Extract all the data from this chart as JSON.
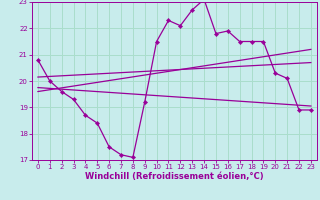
{
  "background_color": "#c8ecec",
  "grid_color": "#aaddcc",
  "line_color": "#990099",
  "xlim": [
    -0.5,
    23.5
  ],
  "ylim": [
    17,
    23
  ],
  "yticks": [
    17,
    18,
    19,
    20,
    21,
    22,
    23
  ],
  "xticks": [
    0,
    1,
    2,
    3,
    4,
    5,
    6,
    7,
    8,
    9,
    10,
    11,
    12,
    13,
    14,
    15,
    16,
    17,
    18,
    19,
    20,
    21,
    22,
    23
  ],
  "xlabel": "Windchill (Refroidissement éolien,°C)",
  "series1": {
    "x": [
      0,
      1,
      2,
      3,
      4,
      5,
      6,
      7,
      8,
      9,
      10,
      11,
      12,
      13,
      14,
      15,
      16,
      17,
      18,
      19,
      20,
      21,
      22,
      23
    ],
    "y": [
      20.8,
      20.0,
      19.6,
      19.3,
      18.7,
      18.4,
      17.5,
      17.2,
      17.1,
      19.2,
      21.5,
      22.3,
      22.1,
      22.7,
      23.1,
      21.8,
      21.9,
      21.5,
      21.5,
      21.5,
      20.3,
      20.1,
      18.9,
      18.9
    ]
  },
  "series2": {
    "x": [
      0,
      23
    ],
    "y": [
      20.15,
      20.7
    ]
  },
  "series3": {
    "x": [
      0,
      23
    ],
    "y": [
      19.75,
      19.05
    ]
  },
  "series4": {
    "x": [
      0,
      23
    ],
    "y": [
      19.6,
      21.2
    ]
  }
}
